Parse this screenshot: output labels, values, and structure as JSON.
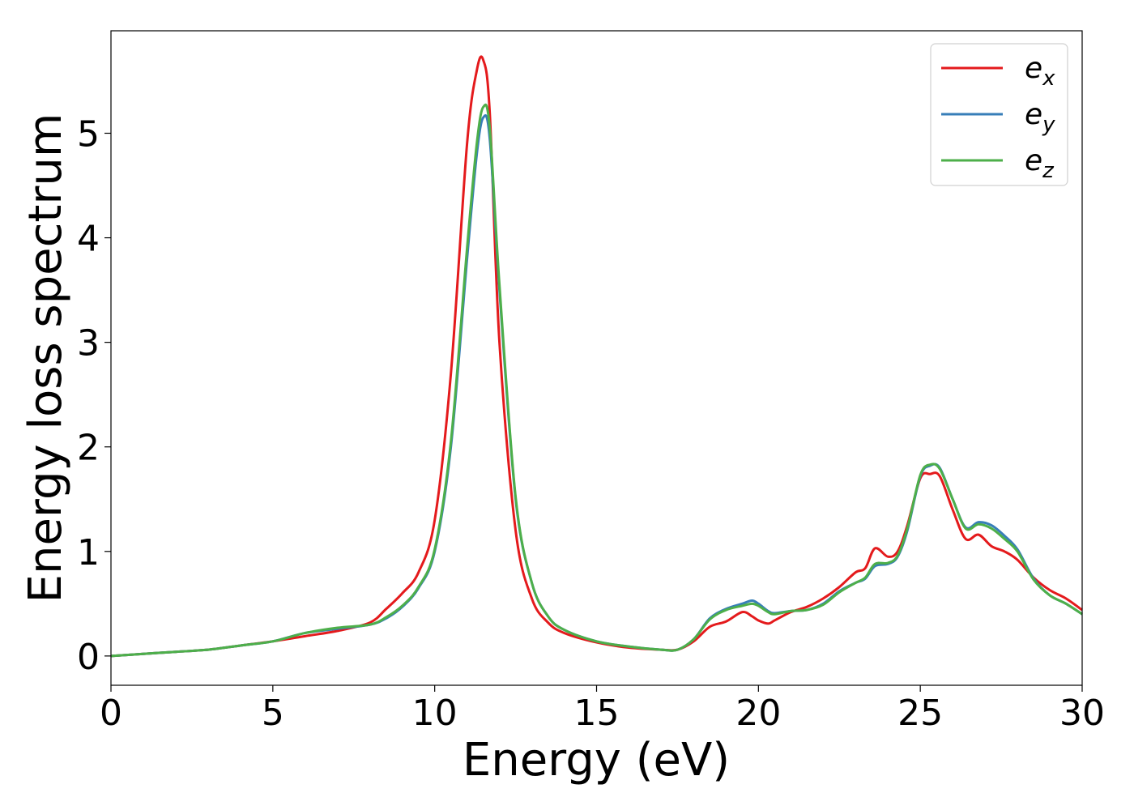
{
  "chart_data": {
    "type": "line",
    "xlabel": "Energy (eV)",
    "ylabel": "Energy loss spectrum",
    "xlim": [
      0,
      30
    ],
    "ylim": [
      -0.28,
      5.98
    ],
    "xticks": [
      "0",
      "5",
      "10",
      "15",
      "20",
      "25",
      "30"
    ],
    "yticks": [
      "0",
      "1",
      "2",
      "3",
      "4",
      "5"
    ],
    "grid": false,
    "legend_position": "top-right",
    "x": [
      0,
      1,
      2,
      3,
      4,
      5,
      6,
      7,
      8,
      8.5,
      9,
      9.5,
      10,
      10.5,
      11,
      11.3,
      11.5,
      11.7,
      12,
      12.5,
      13,
      13.5,
      14,
      15,
      16,
      17,
      17.5,
      18,
      18.5,
      19,
      19.5,
      19.8,
      20,
      20.3,
      20.5,
      21,
      21.5,
      22,
      22.5,
      23,
      23.3,
      23.6,
      24,
      24.3,
      24.6,
      25,
      25.3,
      25.6,
      26,
      26.4,
      26.8,
      27.2,
      27.6,
      28,
      28.5,
      29,
      29.5,
      30
    ],
    "series": [
      {
        "name_base": "e",
        "name_sub": "x",
        "color": "#e41a1c",
        "values": [
          0.0,
          0.02,
          0.04,
          0.06,
          0.1,
          0.14,
          0.19,
          0.24,
          0.32,
          0.45,
          0.6,
          0.8,
          1.3,
          2.7,
          4.9,
          5.6,
          5.7,
          5.2,
          3.0,
          1.2,
          0.55,
          0.32,
          0.22,
          0.13,
          0.08,
          0.06,
          0.06,
          0.14,
          0.28,
          0.33,
          0.42,
          0.38,
          0.34,
          0.31,
          0.34,
          0.42,
          0.47,
          0.55,
          0.66,
          0.8,
          0.84,
          1.03,
          0.95,
          1.0,
          1.25,
          1.7,
          1.74,
          1.72,
          1.4,
          1.12,
          1.16,
          1.05,
          1.0,
          0.92,
          0.75,
          0.63,
          0.55,
          0.44
        ]
      },
      {
        "name_base": "e",
        "name_sub": "y",
        "color": "#377eb8",
        "values": [
          0.0,
          0.02,
          0.04,
          0.06,
          0.1,
          0.14,
          0.22,
          0.26,
          0.3,
          0.36,
          0.47,
          0.65,
          1.0,
          2.0,
          3.8,
          4.8,
          5.15,
          4.95,
          3.5,
          1.5,
          0.7,
          0.38,
          0.25,
          0.14,
          0.09,
          0.06,
          0.06,
          0.16,
          0.36,
          0.45,
          0.5,
          0.53,
          0.5,
          0.43,
          0.41,
          0.43,
          0.44,
          0.5,
          0.62,
          0.7,
          0.74,
          0.86,
          0.88,
          0.95,
          1.2,
          1.72,
          1.82,
          1.8,
          1.5,
          1.23,
          1.28,
          1.25,
          1.15,
          1.02,
          0.74,
          0.58,
          0.5,
          0.4
        ]
      },
      {
        "name_base": "e",
        "name_sub": "z",
        "color": "#4daf4a",
        "values": [
          0.0,
          0.02,
          0.04,
          0.06,
          0.1,
          0.14,
          0.22,
          0.27,
          0.3,
          0.37,
          0.48,
          0.66,
          1.02,
          2.05,
          3.9,
          4.9,
          5.25,
          5.05,
          3.55,
          1.52,
          0.7,
          0.38,
          0.25,
          0.14,
          0.09,
          0.06,
          0.06,
          0.16,
          0.35,
          0.44,
          0.48,
          0.5,
          0.48,
          0.42,
          0.4,
          0.43,
          0.44,
          0.49,
          0.61,
          0.7,
          0.75,
          0.88,
          0.89,
          0.96,
          1.22,
          1.73,
          1.83,
          1.79,
          1.5,
          1.22,
          1.26,
          1.22,
          1.12,
          1.0,
          0.73,
          0.58,
          0.5,
          0.4
        ]
      }
    ]
  }
}
